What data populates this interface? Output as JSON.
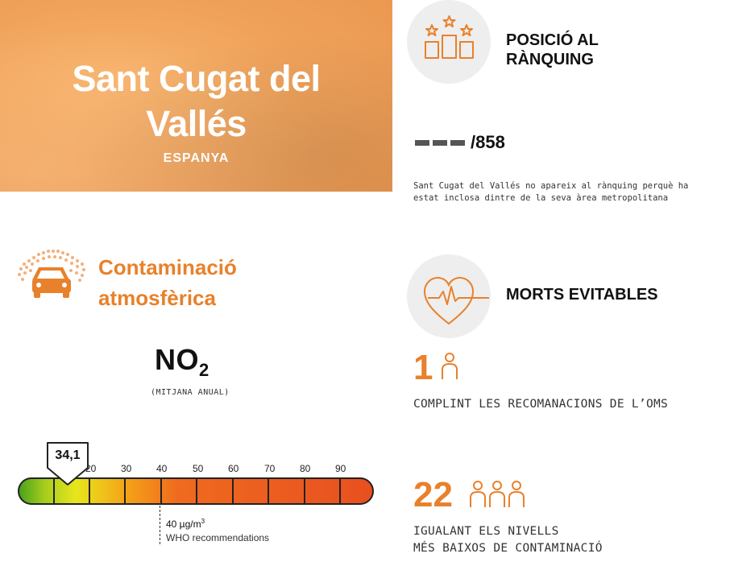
{
  "hero": {
    "city_line1": "Sant Cugat del",
    "city_line2": "Vallés",
    "country": "ESPANYA"
  },
  "ranking": {
    "title_line1": "POSICIÓ AL",
    "title_line2": "RÀNQUING",
    "total": "/858",
    "note": "Sant Cugat del Vallés no apareix al rànquing perquè ha estat inclosa dintre de la seva àrea metropolitana",
    "icon": "podium-stars-icon"
  },
  "pollution": {
    "title_line1": "Contaminació",
    "title_line2": "atmosfèrica",
    "pollutant": "NO",
    "pollutant_sub": "2",
    "subtitle": "(MITJANA ANUAL)",
    "value_label": "34,1",
    "value": 34.1,
    "scale_ticks": [
      "20",
      "30",
      "40",
      "50",
      "60",
      "70",
      "80",
      "90"
    ],
    "who_value": "40 µg/m",
    "who_value_sup": "3",
    "who_label": "WHO recommendations",
    "icon": "car-smog-icon"
  },
  "deaths": {
    "title": "MORTS EVITABLES",
    "who_count": "1",
    "who_caption": "COMPLINT LES RECOMANACIONS DE L’OMS",
    "lowest_count": "22",
    "lowest_caption_line1": "IGUALANT ELS NIVELLS",
    "lowest_caption_line2": "MÉS BAIXOS DE CONTAMINACIÓ",
    "icon": "heart-pulse-icon"
  },
  "colors": {
    "accent": "#e8812b",
    "hero_bg": "#f0a25a",
    "circle_bg": "#eeeeee"
  }
}
